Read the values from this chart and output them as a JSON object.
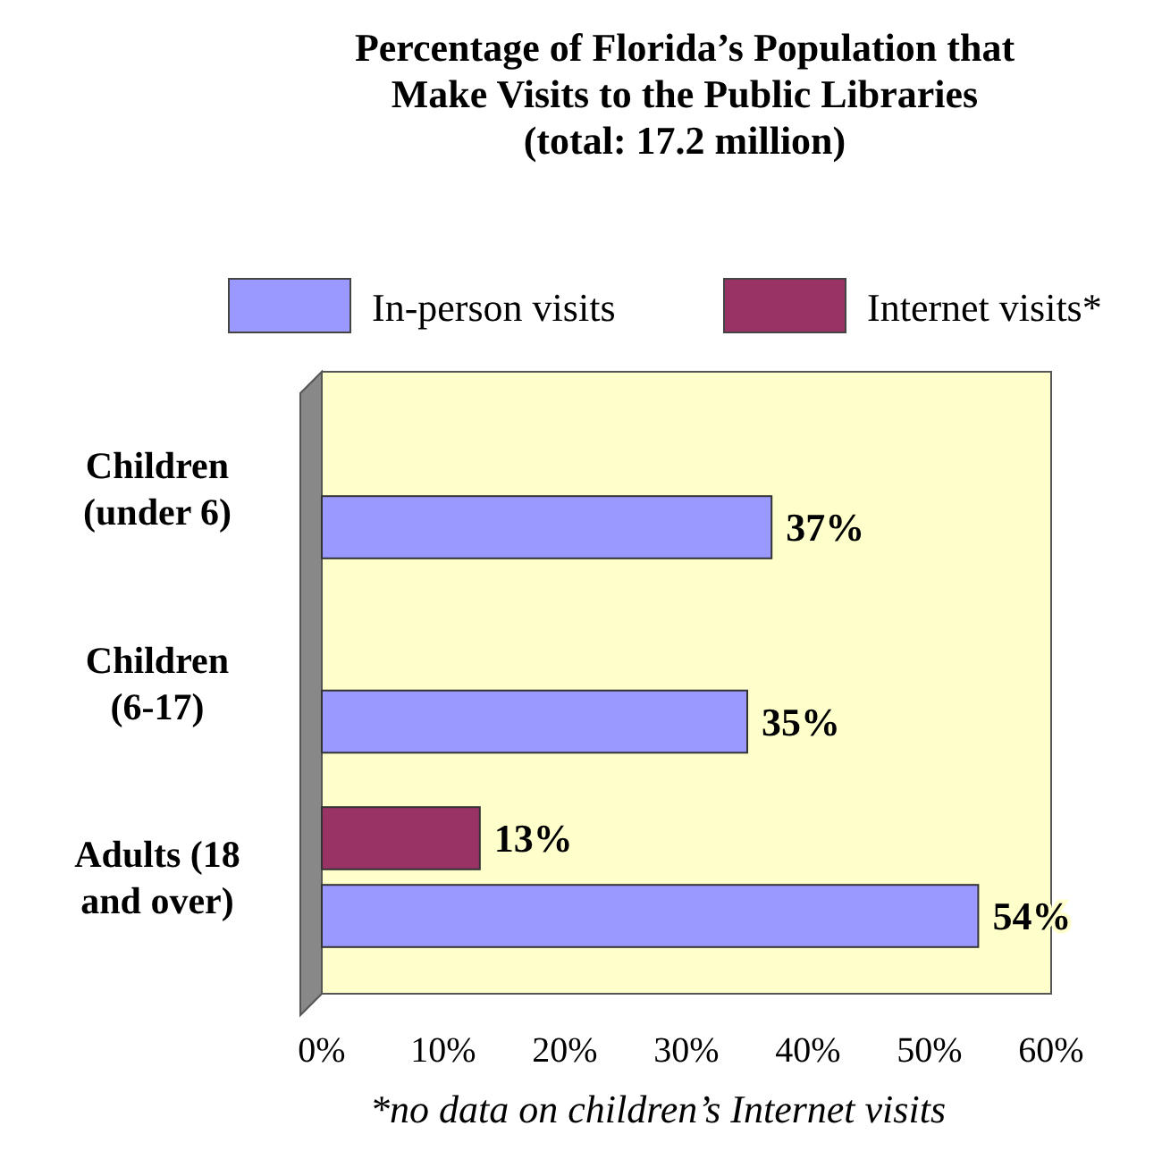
{
  "chart_data": {
    "type": "bar",
    "orientation": "horizontal",
    "title": "Percentage of Florida’s Population that Make Visits to the Public Libraries",
    "subtitle": "(total: 17.2 million)",
    "categories": [
      "Children (under 6)",
      "Children (6-17)",
      "Adults (18 and over)"
    ],
    "series": [
      {
        "name": "In-person visits",
        "color": "#9999ff",
        "values": [
          37,
          35,
          54
        ],
        "value_labels": [
          "37%",
          "35%",
          "54%"
        ]
      },
      {
        "name": "Internet visits*",
        "color": "#993366",
        "values": [
          null,
          null,
          13
        ],
        "value_labels": [
          null,
          null,
          "13%"
        ]
      }
    ],
    "xlim": [
      0,
      60
    ],
    "xticks": [
      {
        "value": 0,
        "label": "0%"
      },
      {
        "value": 10,
        "label": "10%"
      },
      {
        "value": 20,
        "label": "20%"
      },
      {
        "value": 30,
        "label": "30%"
      },
      {
        "value": 40,
        "label": "40%"
      },
      {
        "value": 50,
        "label": "50%"
      },
      {
        "value": 60,
        "label": "60%"
      }
    ],
    "legend": "top",
    "grid": false,
    "annotations": [
      "*no data on children’s Internet visits"
    ]
  }
}
